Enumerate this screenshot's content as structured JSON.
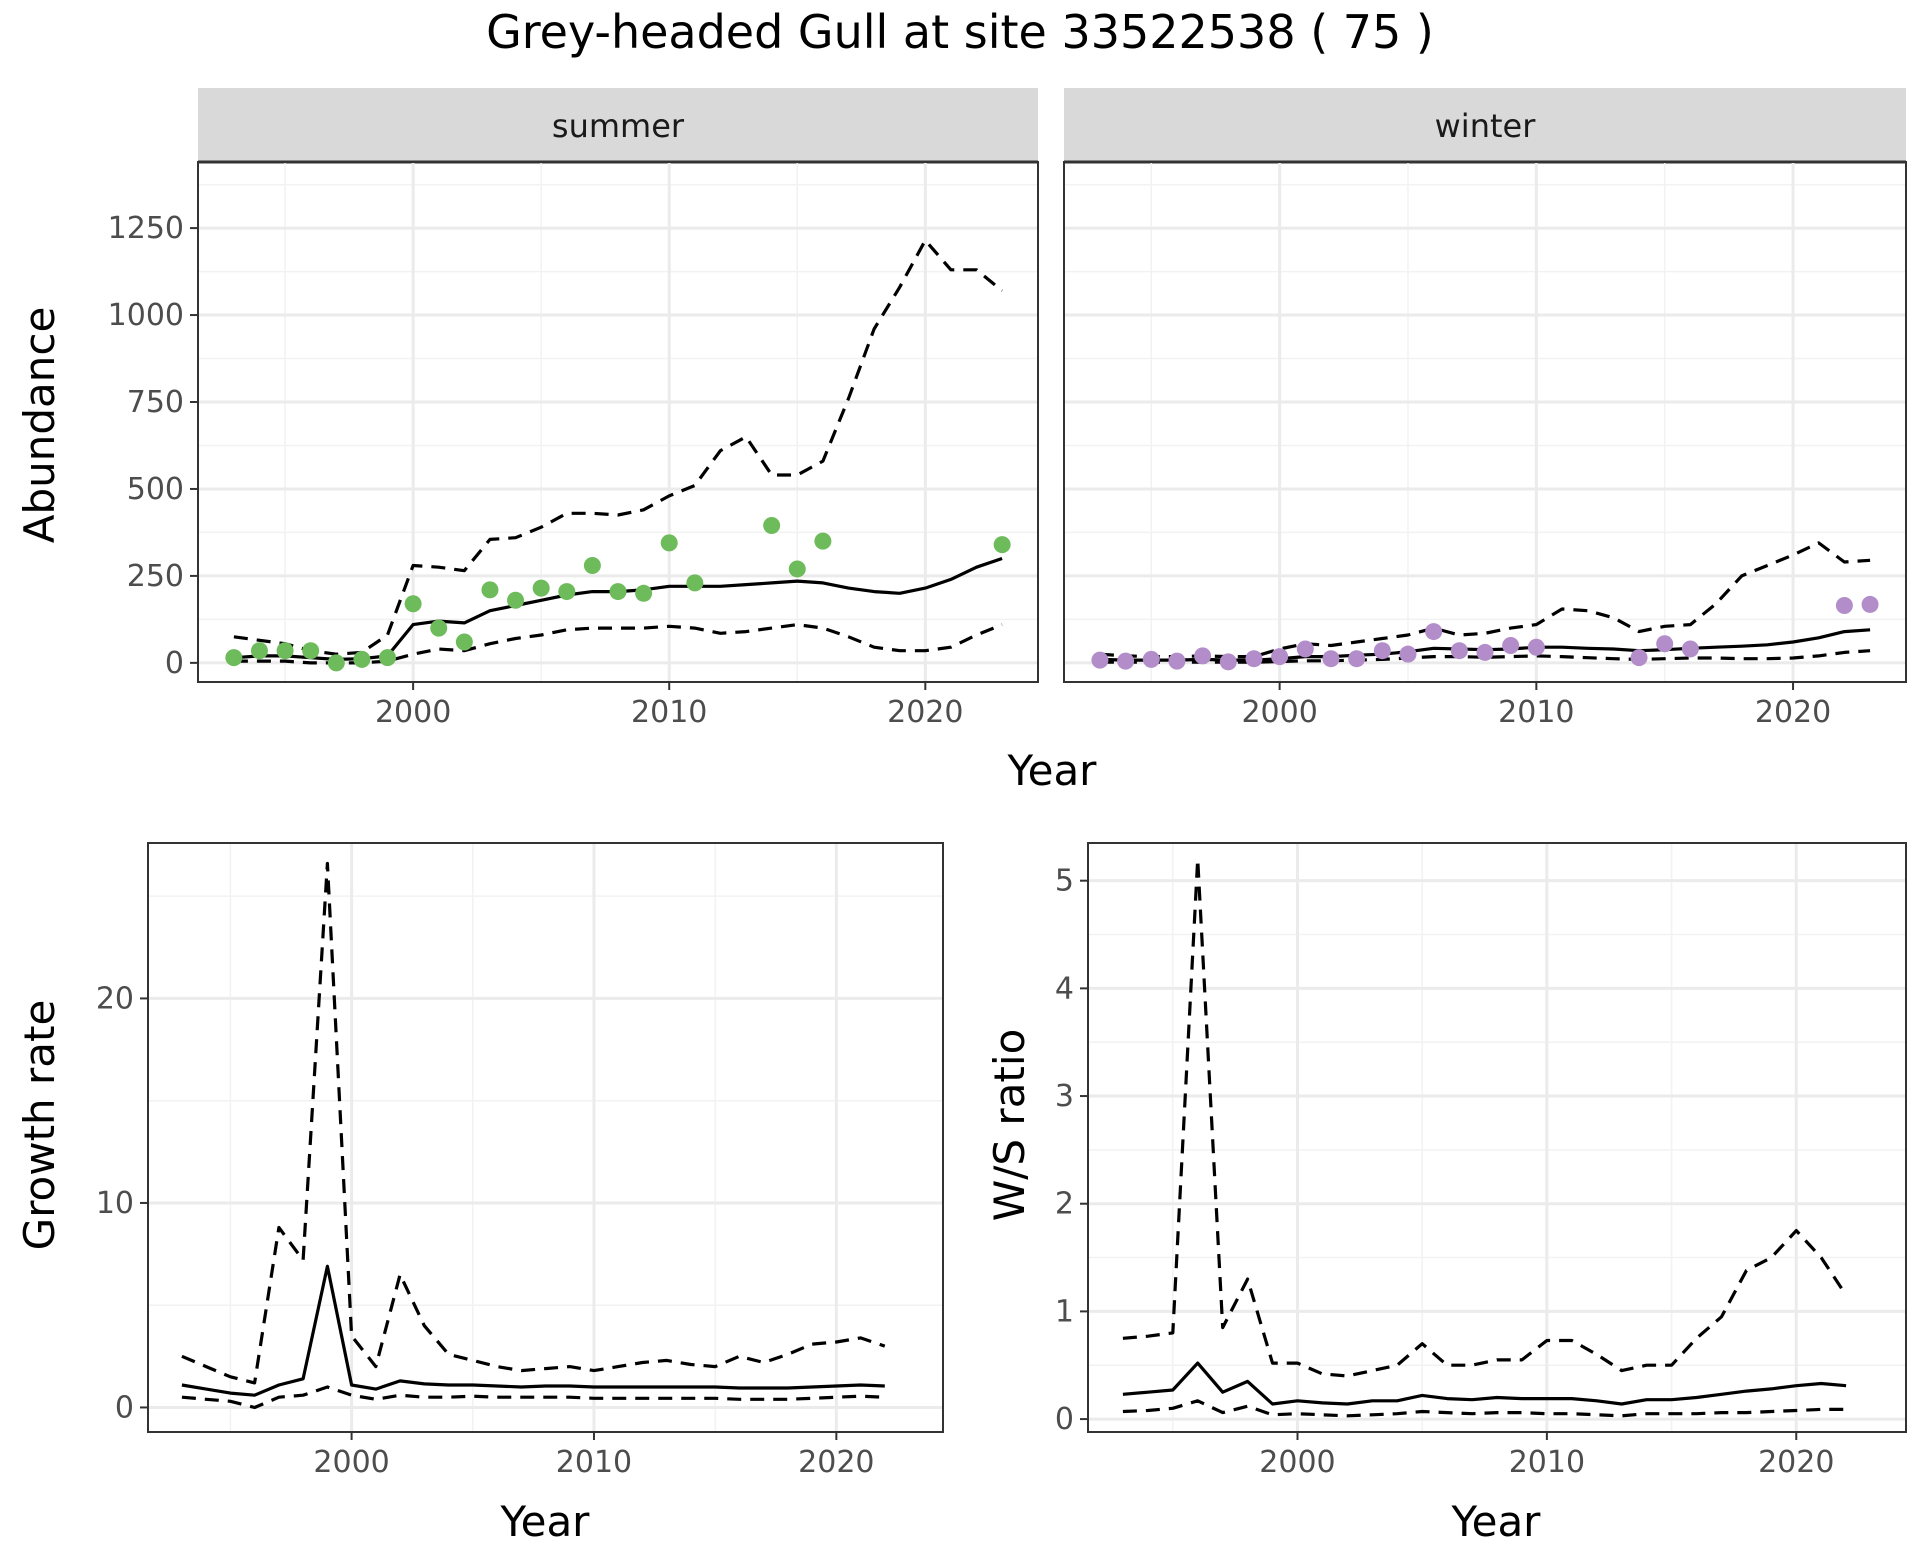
{
  "title": "Grey-headed Gull at site 33522538 ( 75 )",
  "colors": {
    "summer_points": "#6dbb5a",
    "winter_points": "#b28dc9",
    "lines": "#000000",
    "strip_fill": "#d9d9d9",
    "grid": "#ebebeb"
  },
  "chart_data": [
    {
      "type": "scatter",
      "facet": "summer",
      "xlabel": "Year",
      "ylabel": "Abundance",
      "xlim": [
        1991.6,
        2024.4
      ],
      "ylim": [
        -55,
        1440
      ],
      "xticks": [
        2000,
        2010,
        2020
      ],
      "yticks": [
        0,
        250,
        500,
        750,
        1000,
        1250
      ],
      "grid": true,
      "points": {
        "x": [
          1993,
          1994,
          1995,
          1996,
          1997,
          1998,
          1999,
          2000,
          2001,
          2002,
          2003,
          2004,
          2005,
          2006,
          2007,
          2008,
          2009,
          2010,
          2011,
          2014,
          2015,
          2016,
          2023
        ],
        "y": [
          15,
          35,
          35,
          35,
          0,
          10,
          15,
          170,
          100,
          60,
          210,
          180,
          215,
          205,
          280,
          205,
          200,
          345,
          230,
          395,
          270,
          350,
          340
        ]
      },
      "fit": {
        "x": [
          1993,
          1994,
          1995,
          1996,
          1997,
          1998,
          1999,
          2000,
          2001,
          2002,
          2003,
          2004,
          2005,
          2006,
          2007,
          2008,
          2009,
          2010,
          2011,
          2012,
          2013,
          2014,
          2015,
          2016,
          2017,
          2018,
          2019,
          2020,
          2021,
          2022,
          2023
        ],
        "y": [
          15,
          20,
          20,
          15,
          10,
          12,
          20,
          110,
          120,
          115,
          150,
          165,
          180,
          195,
          205,
          205,
          210,
          220,
          220,
          220,
          225,
          230,
          235,
          230,
          215,
          205,
          200,
          215,
          240,
          275,
          300
        ]
      },
      "upper": {
        "x": [
          1993,
          1994,
          1995,
          1996,
          1997,
          1998,
          1999,
          2000,
          2001,
          2002,
          2003,
          2004,
          2005,
          2006,
          2007,
          2008,
          2009,
          2010,
          2011,
          2012,
          2013,
          2014,
          2015,
          2016,
          2017,
          2018,
          2019,
          2020,
          2021,
          2022,
          2023
        ],
        "y": [
          75,
          65,
          55,
          35,
          25,
          30,
          80,
          280,
          275,
          265,
          355,
          360,
          390,
          430,
          430,
          425,
          440,
          480,
          510,
          610,
          650,
          540,
          540,
          580,
          760,
          960,
          1080,
          1215,
          1130,
          1130,
          1070
        ]
      },
      "lower": {
        "x": [
          1993,
          1994,
          1995,
          1996,
          1997,
          1998,
          1999,
          2000,
          2001,
          2002,
          2003,
          2004,
          2005,
          2006,
          2007,
          2008,
          2009,
          2010,
          2011,
          2012,
          2013,
          2014,
          2015,
          2016,
          2017,
          2018,
          2019,
          2020,
          2021,
          2022,
          2023
        ],
        "y": [
          5,
          5,
          5,
          0,
          0,
          0,
          5,
          25,
          40,
          35,
          55,
          70,
          80,
          95,
          100,
          100,
          100,
          105,
          100,
          85,
          90,
          100,
          110,
          100,
          75,
          45,
          35,
          35,
          45,
          80,
          110
        ]
      }
    },
    {
      "type": "scatter",
      "facet": "winter",
      "xlabel": "Year",
      "ylabel": "Abundance",
      "xlim": [
        1991.6,
        2024.4
      ],
      "ylim": [
        -55,
        1440
      ],
      "xticks": [
        2000,
        2010,
        2020
      ],
      "yticks": [
        0,
        250,
        500,
        750,
        1000,
        1250
      ],
      "grid": true,
      "points": {
        "x": [
          1993,
          1994,
          1995,
          1996,
          1997,
          1998,
          1999,
          2000,
          2001,
          2002,
          2003,
          2004,
          2005,
          2006,
          2007,
          2008,
          2009,
          2010,
          2014,
          2015,
          2016,
          2022,
          2023
        ],
        "y": [
          8,
          5,
          10,
          5,
          20,
          3,
          12,
          18,
          40,
          12,
          12,
          35,
          25,
          90,
          35,
          30,
          50,
          45,
          15,
          55,
          40,
          165,
          168
        ]
      },
      "fit": {
        "x": [
          1993,
          1994,
          1995,
          1996,
          1997,
          1998,
          1999,
          2000,
          2001,
          2002,
          2003,
          2004,
          2005,
          2006,
          2007,
          2008,
          2009,
          2010,
          2011,
          2012,
          2013,
          2014,
          2015,
          2016,
          2017,
          2018,
          2019,
          2020,
          2021,
          2022,
          2023
        ],
        "y": [
          10,
          8,
          8,
          8,
          10,
          8,
          8,
          12,
          18,
          18,
          22,
          25,
          32,
          42,
          40,
          38,
          40,
          45,
          45,
          42,
          40,
          35,
          38,
          42,
          45,
          48,
          52,
          60,
          72,
          90,
          95
        ]
      },
      "upper": {
        "x": [
          1993,
          1994,
          1995,
          1996,
          1997,
          1998,
          1999,
          2000,
          2001,
          2002,
          2003,
          2004,
          2005,
          2006,
          2007,
          2008,
          2009,
          2010,
          2011,
          2012,
          2013,
          2014,
          2015,
          2016,
          2017,
          2018,
          2019,
          2020,
          2021,
          2022,
          2023
        ],
        "y": [
          25,
          20,
          18,
          18,
          20,
          18,
          18,
          40,
          55,
          50,
          60,
          70,
          80,
          100,
          80,
          85,
          100,
          110,
          155,
          150,
          130,
          90,
          105,
          110,
          170,
          250,
          280,
          310,
          345,
          290,
          295
        ]
      },
      "lower": {
        "x": [
          1993,
          1994,
          1995,
          1996,
          1997,
          1998,
          1999,
          2000,
          2001,
          2002,
          2003,
          2004,
          2005,
          2006,
          2007,
          2008,
          2009,
          2010,
          2011,
          2012,
          2013,
          2014,
          2015,
          2016,
          2017,
          2018,
          2019,
          2020,
          2021,
          2022,
          2023
        ],
        "y": [
          2,
          2,
          2,
          2,
          2,
          2,
          2,
          4,
          6,
          6,
          8,
          10,
          14,
          18,
          18,
          16,
          18,
          20,
          18,
          15,
          12,
          10,
          12,
          14,
          14,
          12,
          12,
          14,
          20,
          30,
          35
        ]
      }
    },
    {
      "type": "line",
      "xlabel": "Year",
      "ylabel": "Growth rate",
      "xlim": [
        1991.6,
        2024.4
      ],
      "ylim": [
        -1.2,
        27.6
      ],
      "xticks": [
        2000,
        2010,
        2020
      ],
      "yticks": [
        0,
        10,
        20
      ],
      "grid": true,
      "fit": {
        "x": [
          1993,
          1994,
          1995,
          1996,
          1997,
          1998,
          1999,
          2000,
          2001,
          2002,
          2003,
          2004,
          2005,
          2006,
          2007,
          2008,
          2009,
          2010,
          2011,
          2012,
          2013,
          2014,
          2015,
          2016,
          2017,
          2018,
          2019,
          2020,
          2021,
          2022
        ],
        "y": [
          1.1,
          0.9,
          0.7,
          0.6,
          1.1,
          1.4,
          6.9,
          1.1,
          0.9,
          1.3,
          1.15,
          1.1,
          1.1,
          1.05,
          1.0,
          1.05,
          1.05,
          1.0,
          1.0,
          1.0,
          1.0,
          1.0,
          1.0,
          0.95,
          0.95,
          0.95,
          1.0,
          1.05,
          1.1,
          1.05
        ]
      },
      "upper": {
        "x": [
          1993,
          1994,
          1995,
          1996,
          1997,
          1998,
          1999,
          2000,
          2001,
          2002,
          2003,
          2004,
          2005,
          2006,
          2007,
          2008,
          2009,
          2010,
          2011,
          2012,
          2013,
          2014,
          2015,
          2016,
          2017,
          2018,
          2019,
          2020,
          2021,
          2022
        ],
        "y": [
          2.5,
          2.0,
          1.5,
          1.2,
          8.8,
          7.2,
          26.6,
          3.5,
          2.0,
          6.5,
          4.0,
          2.6,
          2.3,
          2.0,
          1.8,
          1.9,
          2.0,
          1.8,
          2.0,
          2.2,
          2.3,
          2.1,
          2.0,
          2.5,
          2.2,
          2.6,
          3.1,
          3.2,
          3.4,
          3.0
        ]
      },
      "lower": {
        "x": [
          1993,
          1994,
          1995,
          1996,
          1997,
          1998,
          1999,
          2000,
          2001,
          2002,
          2003,
          2004,
          2005,
          2006,
          2007,
          2008,
          2009,
          2010,
          2011,
          2012,
          2013,
          2014,
          2015,
          2016,
          2017,
          2018,
          2019,
          2020,
          2021,
          2022
        ],
        "y": [
          0.5,
          0.4,
          0.3,
          0.0,
          0.5,
          0.6,
          1.0,
          0.6,
          0.4,
          0.6,
          0.5,
          0.5,
          0.55,
          0.5,
          0.5,
          0.5,
          0.5,
          0.45,
          0.45,
          0.45,
          0.45,
          0.45,
          0.45,
          0.4,
          0.4,
          0.4,
          0.45,
          0.5,
          0.55,
          0.5
        ]
      }
    },
    {
      "type": "line",
      "xlabel": "Year",
      "ylabel": "W/S ratio",
      "xlim": [
        1991.6,
        2024.4
      ],
      "ylim": [
        -0.12,
        5.35
      ],
      "xticks": [
        2000,
        2010,
        2020
      ],
      "yticks": [
        0,
        1,
        2,
        3,
        4,
        5
      ],
      "grid": true,
      "fit": {
        "x": [
          1993,
          1994,
          1995,
          1996,
          1997,
          1998,
          1999,
          2000,
          2001,
          2002,
          2003,
          2004,
          2005,
          2006,
          2007,
          2008,
          2009,
          2010,
          2011,
          2012,
          2013,
          2014,
          2015,
          2016,
          2017,
          2018,
          2019,
          2020,
          2021,
          2022
        ],
        "y": [
          0.23,
          0.25,
          0.27,
          0.52,
          0.25,
          0.35,
          0.14,
          0.17,
          0.15,
          0.14,
          0.17,
          0.17,
          0.22,
          0.19,
          0.18,
          0.2,
          0.19,
          0.19,
          0.19,
          0.17,
          0.14,
          0.18,
          0.18,
          0.2,
          0.23,
          0.26,
          0.28,
          0.31,
          0.33,
          0.31
        ]
      },
      "upper": {
        "x": [
          1993,
          1994,
          1995,
          1996,
          1997,
          1998,
          1999,
          2000,
          2001,
          2002,
          2003,
          2004,
          2005,
          2006,
          2007,
          2008,
          2009,
          2010,
          2011,
          2012,
          2013,
          2014,
          2015,
          2016,
          2017,
          2018,
          2019,
          2020,
          2021,
          2022
        ],
        "y": [
          0.75,
          0.77,
          0.8,
          5.2,
          0.85,
          1.3,
          0.52,
          0.52,
          0.42,
          0.4,
          0.45,
          0.5,
          0.7,
          0.5,
          0.5,
          0.55,
          0.55,
          0.73,
          0.73,
          0.6,
          0.45,
          0.5,
          0.5,
          0.75,
          0.95,
          1.38,
          1.5,
          1.75,
          1.5,
          1.15
        ]
      },
      "lower": {
        "x": [
          1993,
          1994,
          1995,
          1996,
          1997,
          1998,
          1999,
          2000,
          2001,
          2002,
          2003,
          2004,
          2005,
          2006,
          2007,
          2008,
          2009,
          2010,
          2011,
          2012,
          2013,
          2014,
          2015,
          2016,
          2017,
          2018,
          2019,
          2020,
          2021,
          2022
        ],
        "y": [
          0.07,
          0.08,
          0.1,
          0.17,
          0.06,
          0.12,
          0.04,
          0.05,
          0.04,
          0.03,
          0.04,
          0.05,
          0.07,
          0.06,
          0.05,
          0.06,
          0.06,
          0.05,
          0.05,
          0.04,
          0.03,
          0.05,
          0.05,
          0.05,
          0.06,
          0.06,
          0.07,
          0.08,
          0.09,
          0.09
        ]
      }
    }
  ]
}
